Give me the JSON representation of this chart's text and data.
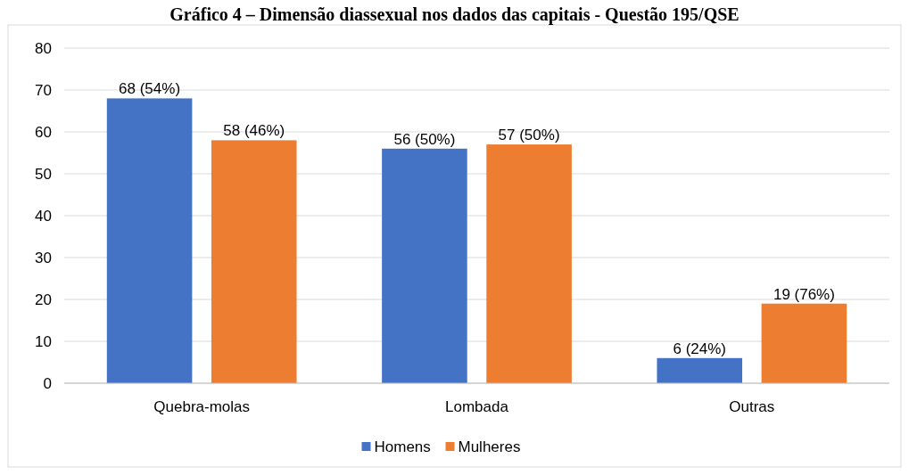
{
  "chart_data": {
    "type": "bar",
    "title": "Gráfico 4 – Dimensão diassexual nos dados das capitais - Questão 195/QSE",
    "categories": [
      "Quebra-molas",
      "Lombada",
      "Outras"
    ],
    "series": [
      {
        "name": "Homens",
        "color": "#4472c4",
        "values": [
          68,
          56,
          6
        ],
        "value_labels": [
          "68 (54%)",
          "56 (50%)",
          "6 (24%)"
        ]
      },
      {
        "name": "Mulheres",
        "color": "#ed7d31",
        "values": [
          58,
          57,
          19
        ],
        "value_labels": [
          "58 (46%)",
          "57 (50%)",
          "19 (76%)"
        ]
      }
    ],
    "ylim": [
      0,
      80
    ],
    "yticks": [
      0,
      10,
      20,
      30,
      40,
      50,
      60,
      70,
      80
    ],
    "grid": "y",
    "legend": "bottom"
  }
}
